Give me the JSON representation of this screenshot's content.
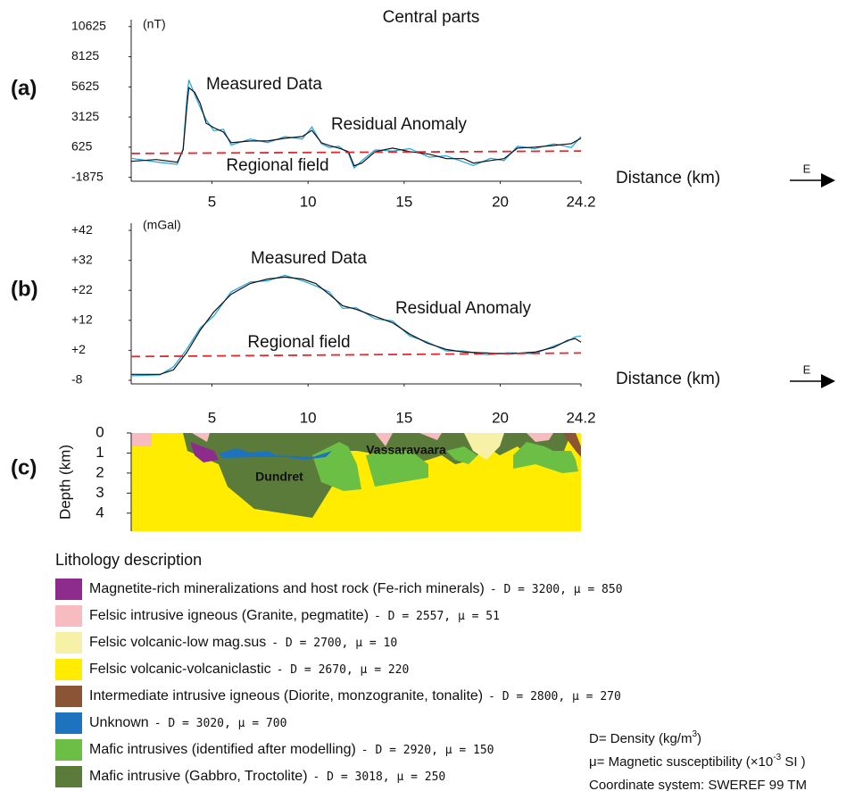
{
  "chart_data": [
    {
      "type": "line",
      "panel_label": "(a)",
      "title": "Central parts",
      "title_color": "#d7282f",
      "unit_label": "(nT)",
      "x_label": "Distance (km)",
      "direction": "E",
      "xlim": [
        0.8,
        24.2
      ],
      "xticks": [
        5,
        10,
        15,
        20,
        24.2
      ],
      "ylim": [
        -2200,
        11200
      ],
      "yticks": [
        10625,
        8125,
        5625,
        3125,
        625,
        -1875
      ],
      "x": [
        0.8,
        2.1,
        3.2,
        3.5,
        3.7,
        3.8,
        4.1,
        4.4,
        4.7,
        5.1,
        5.6,
        6.0,
        7.0,
        7.9,
        8.8,
        9.7,
        10.2,
        10.7,
        11.1,
        11.6,
        12.1,
        12.4,
        12.8,
        13.5,
        14.4,
        15.3,
        16.3,
        17.2,
        18.1,
        18.6,
        19.5,
        20.2,
        20.9,
        21.8,
        22.8,
        23.7,
        24.2
      ],
      "series": [
        {
          "name": "Residual Anomaly",
          "color": "#1aa3e0",
          "values": [
            -300,
            -600,
            -800,
            500,
            4800,
            6200,
            5000,
            3900,
            2900,
            2000,
            2100,
            800,
            1300,
            1000,
            1500,
            1300,
            2300,
            900,
            600,
            700,
            100,
            -1100,
            -500,
            400,
            300,
            500,
            -200,
            -100,
            -600,
            -900,
            -300,
            -500,
            700,
            500,
            900,
            600,
            1500
          ]
        },
        {
          "name": "Measured Data",
          "color": "#111111",
          "values": [
            -550,
            -400,
            -625,
            400,
            4080,
            5550,
            5180,
            4225,
            2610,
            2240,
            1875,
            990,
            1140,
            1140,
            1360,
            1510,
            2020,
            990,
            770,
            550,
            260,
            -920,
            -700,
            260,
            550,
            260,
            40,
            -330,
            -330,
            -700,
            -480,
            -330,
            550,
            625,
            770,
            920,
            1360
          ]
        },
        {
          "name": "Regional field",
          "color": "#e0282e",
          "dashed": true,
          "x": [
            0.8,
            24.2
          ],
          "values": [
            100,
            300
          ]
        }
      ]
    },
    {
      "type": "line",
      "panel_label": "(b)",
      "unit_label": "(mGal)",
      "x_label": "Distance (km)",
      "direction": "E",
      "xlim": [
        0.8,
        24.2
      ],
      "xticks": [
        5,
        10,
        15,
        20,
        24.2
      ],
      "ylim": [
        -9.2,
        44.4
      ],
      "yticks": [
        {
          "value": 42,
          "label": "+42"
        },
        {
          "value": 32,
          "label": "+32"
        },
        {
          "value": 22,
          "label": "+22"
        },
        {
          "value": 12,
          "label": "+12"
        },
        {
          "value": 2,
          "label": "+2"
        },
        -8
      ],
      "x": [
        0.8,
        2.3,
        3.0,
        3.7,
        4.4,
        5.1,
        6.0,
        7.0,
        7.9,
        8.8,
        9.7,
        10.4,
        11.1,
        11.8,
        12.5,
        13.5,
        14.4,
        15.3,
        16.2,
        17.2,
        18.1,
        19.3,
        20.4,
        21.8,
        22.8,
        23.5,
        23.9,
        24.2
      ],
      "series": [
        {
          "name": "Residual Anomaly",
          "color": "#1aa3e0",
          "values": [
            -6.5,
            -6.2,
            -3.5,
            2.5,
            9.5,
            13.5,
            21.5,
            24.8,
            25.2,
            27,
            25.2,
            23.5,
            21.5,
            16,
            16.2,
            12.5,
            11.8,
            6.8,
            4.8,
            1.8,
            1.8,
            0.5,
            1.2,
            0.9,
            3.5,
            5,
            6.5,
            6.8
          ]
        },
        {
          "name": "Measured Data",
          "color": "#111111",
          "values": [
            -6,
            -6,
            -4.5,
            1.4,
            8.8,
            14.8,
            20.7,
            24.3,
            25.8,
            26.4,
            25.8,
            24.3,
            20.7,
            16.9,
            15.7,
            13.3,
            11.2,
            7.4,
            4.4,
            2.3,
            1.4,
            1.1,
            0.8,
            1.4,
            3,
            5.3,
            5.9,
            4.7
          ]
        },
        {
          "name": "Regional field",
          "color": "#e0282e",
          "dashed": true,
          "x": [
            0.8,
            24.2
          ],
          "values": [
            -0.1,
            1.1
          ]
        }
      ]
    },
    {
      "type": "section",
      "panel_label": "(c)",
      "y_label": "Depth (km)",
      "ylim": [
        0,
        4.9
      ],
      "yticks": [
        0,
        1,
        2,
        3,
        4
      ],
      "labels": [
        "Dundret",
        "Vassaravaara"
      ],
      "legend_title": "Lithology description",
      "legend": [
        {
          "color": "#8e2c8e",
          "label": "Magnetite-rich mineralizations and host rock (Fe-rich minerals)",
          "properties": "- D = 3200, μ = 850"
        },
        {
          "color": "#f7bcc0",
          "label": "Felsic intrusive igneous (Granite, pegmatite)",
          "properties": "- D = 2557, μ = 51"
        },
        {
          "color": "#f6f1a6",
          "label": "Felsic volcanic-low mag.sus",
          "properties": "- D = 2700, μ = 10"
        },
        {
          "color": "#ffec00",
          "label": "Felsic volcanic-volcaniclastic",
          "properties": "- D = 2670, μ = 220"
        },
        {
          "color": "#8a5535",
          "label": "Intermediate intrusive igneous (Diorite, monzogranite, tonalite)",
          "properties": "- D = 2800, μ = 270"
        },
        {
          "color": "#1e73be",
          "label": "Unknown",
          "properties": "- D = 3020, μ = 700"
        },
        {
          "color": "#6cbf45",
          "label": "Mafic intrusives (identified after modelling)",
          "properties": "- D = 2920, μ = 150"
        },
        {
          "color": "#5b7b3a",
          "label": "Mafic intrusive (Gabbro, Troctolite)",
          "properties": "- D = 3018, μ = 250"
        }
      ],
      "notes": [
        {
          "text": "D= Density (kg/m",
          "sup": "3",
          "after": ")"
        },
        {
          "text": "μ= Magnetic susceptibility (×10",
          "sup": "-3",
          "after": " SI )"
        },
        {
          "text": "Coordinate system: SWEREF 99 TM"
        }
      ]
    }
  ]
}
